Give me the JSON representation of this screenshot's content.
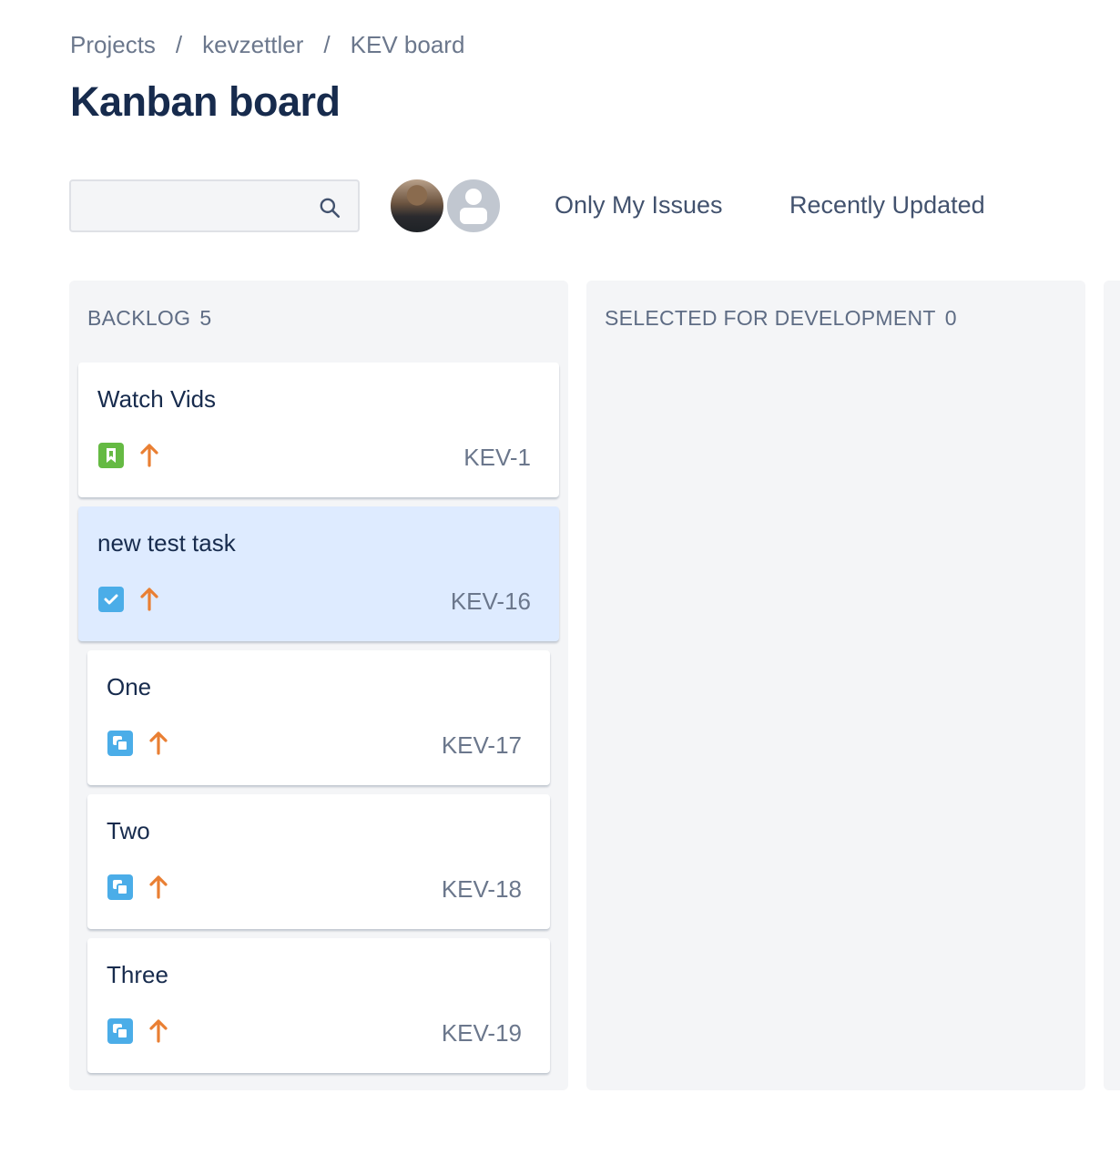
{
  "breadcrumb": [
    "Projects",
    "kevzettler",
    "KEV board"
  ],
  "title": "Kanban board",
  "search": {
    "placeholder": "",
    "value": "",
    "icon": "search-icon"
  },
  "avatars": [
    {
      "type": "photo"
    },
    {
      "type": "default-user"
    }
  ],
  "filters": [
    "Only My Issues",
    "Recently Updated"
  ],
  "colors": {
    "story": "#65ba43",
    "task": "#4bade8",
    "subtask": "#4bade8",
    "priority_high": "#e97f33",
    "selected_card": "#deebff",
    "column_bg": "#f4f5f7"
  },
  "columns": [
    {
      "name": "BACKLOG",
      "count": "5",
      "cards": [
        {
          "title": "Watch Vids",
          "key": "KEV-1",
          "type": "story",
          "priority": "high"
        },
        {
          "title": "new test task",
          "key": "KEV-16",
          "type": "task",
          "priority": "high",
          "selected": true
        },
        {
          "title": "One",
          "key": "KEV-17",
          "type": "subtask",
          "priority": "high"
        },
        {
          "title": "Two",
          "key": "KEV-18",
          "type": "subtask",
          "priority": "high"
        },
        {
          "title": "Three",
          "key": "KEV-19",
          "type": "subtask",
          "priority": "high"
        }
      ]
    },
    {
      "name": "SELECTED FOR DEVELOPMENT",
      "count": "0",
      "cards": []
    }
  ]
}
